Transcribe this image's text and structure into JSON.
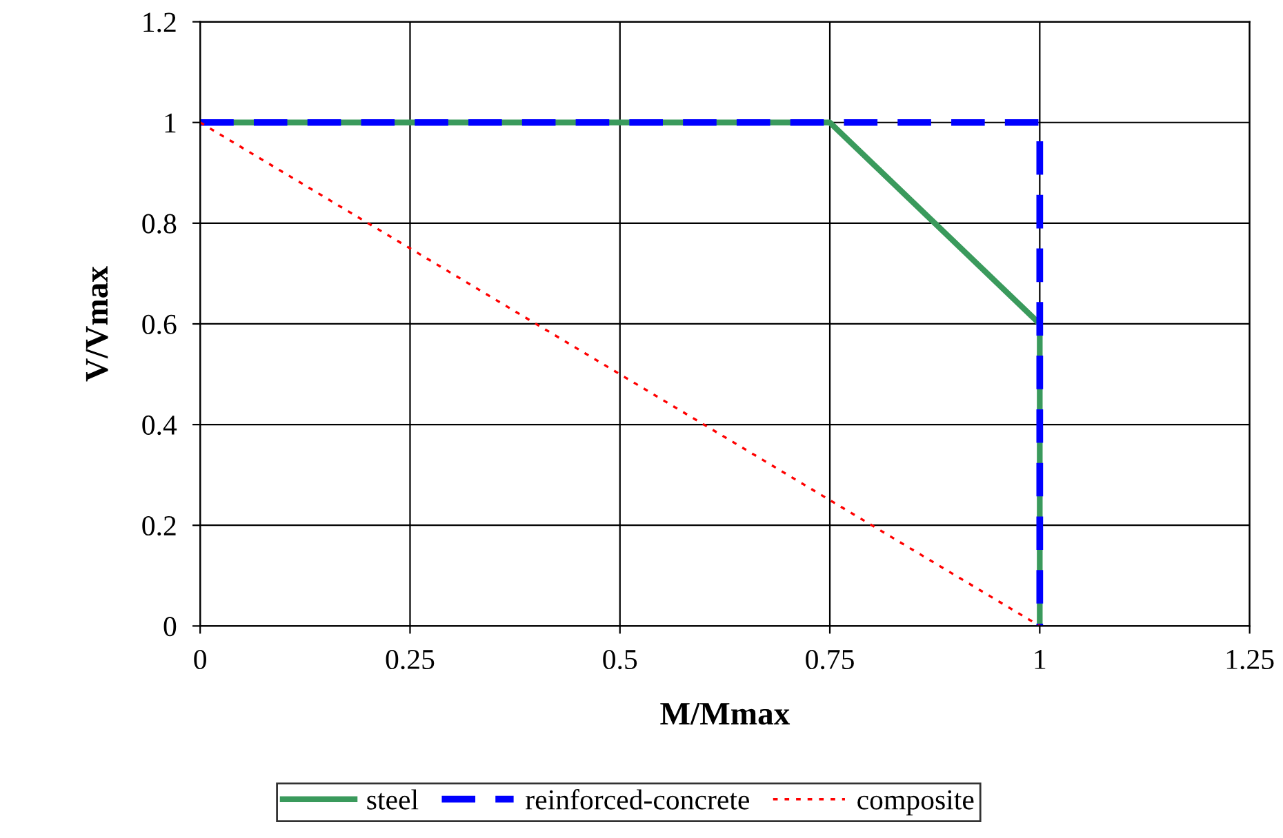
{
  "chart_data": {
    "type": "line",
    "xlabel": "M/Mmax",
    "ylabel": "V/Vmax",
    "xlim": [
      0,
      1.25
    ],
    "xticks": [
      0,
      0.25,
      0.5,
      0.75,
      1,
      1.25
    ],
    "ylim": [
      0,
      1.2
    ],
    "yticks": [
      0,
      0.2,
      0.4,
      0.6,
      0.8,
      1,
      1.2
    ],
    "grid": true,
    "legend": "bottom",
    "marker": "none",
    "series": [
      {
        "name": "steel",
        "color": "#3a9a5c",
        "line_style": "solid",
        "x": [
          0,
          0.75,
          1,
          1
        ],
        "values": [
          1,
          1,
          0.6,
          0
        ]
      },
      {
        "name": "reinforced-concrete",
        "color": "#0000ff",
        "line_style": "dashed",
        "x": [
          0,
          1,
          1
        ],
        "values": [
          1,
          1,
          0
        ]
      },
      {
        "name": "composite",
        "color": "#ff0000",
        "line_style": "dotted",
        "x": [
          0,
          1
        ],
        "values": [
          1,
          0
        ]
      }
    ]
  }
}
